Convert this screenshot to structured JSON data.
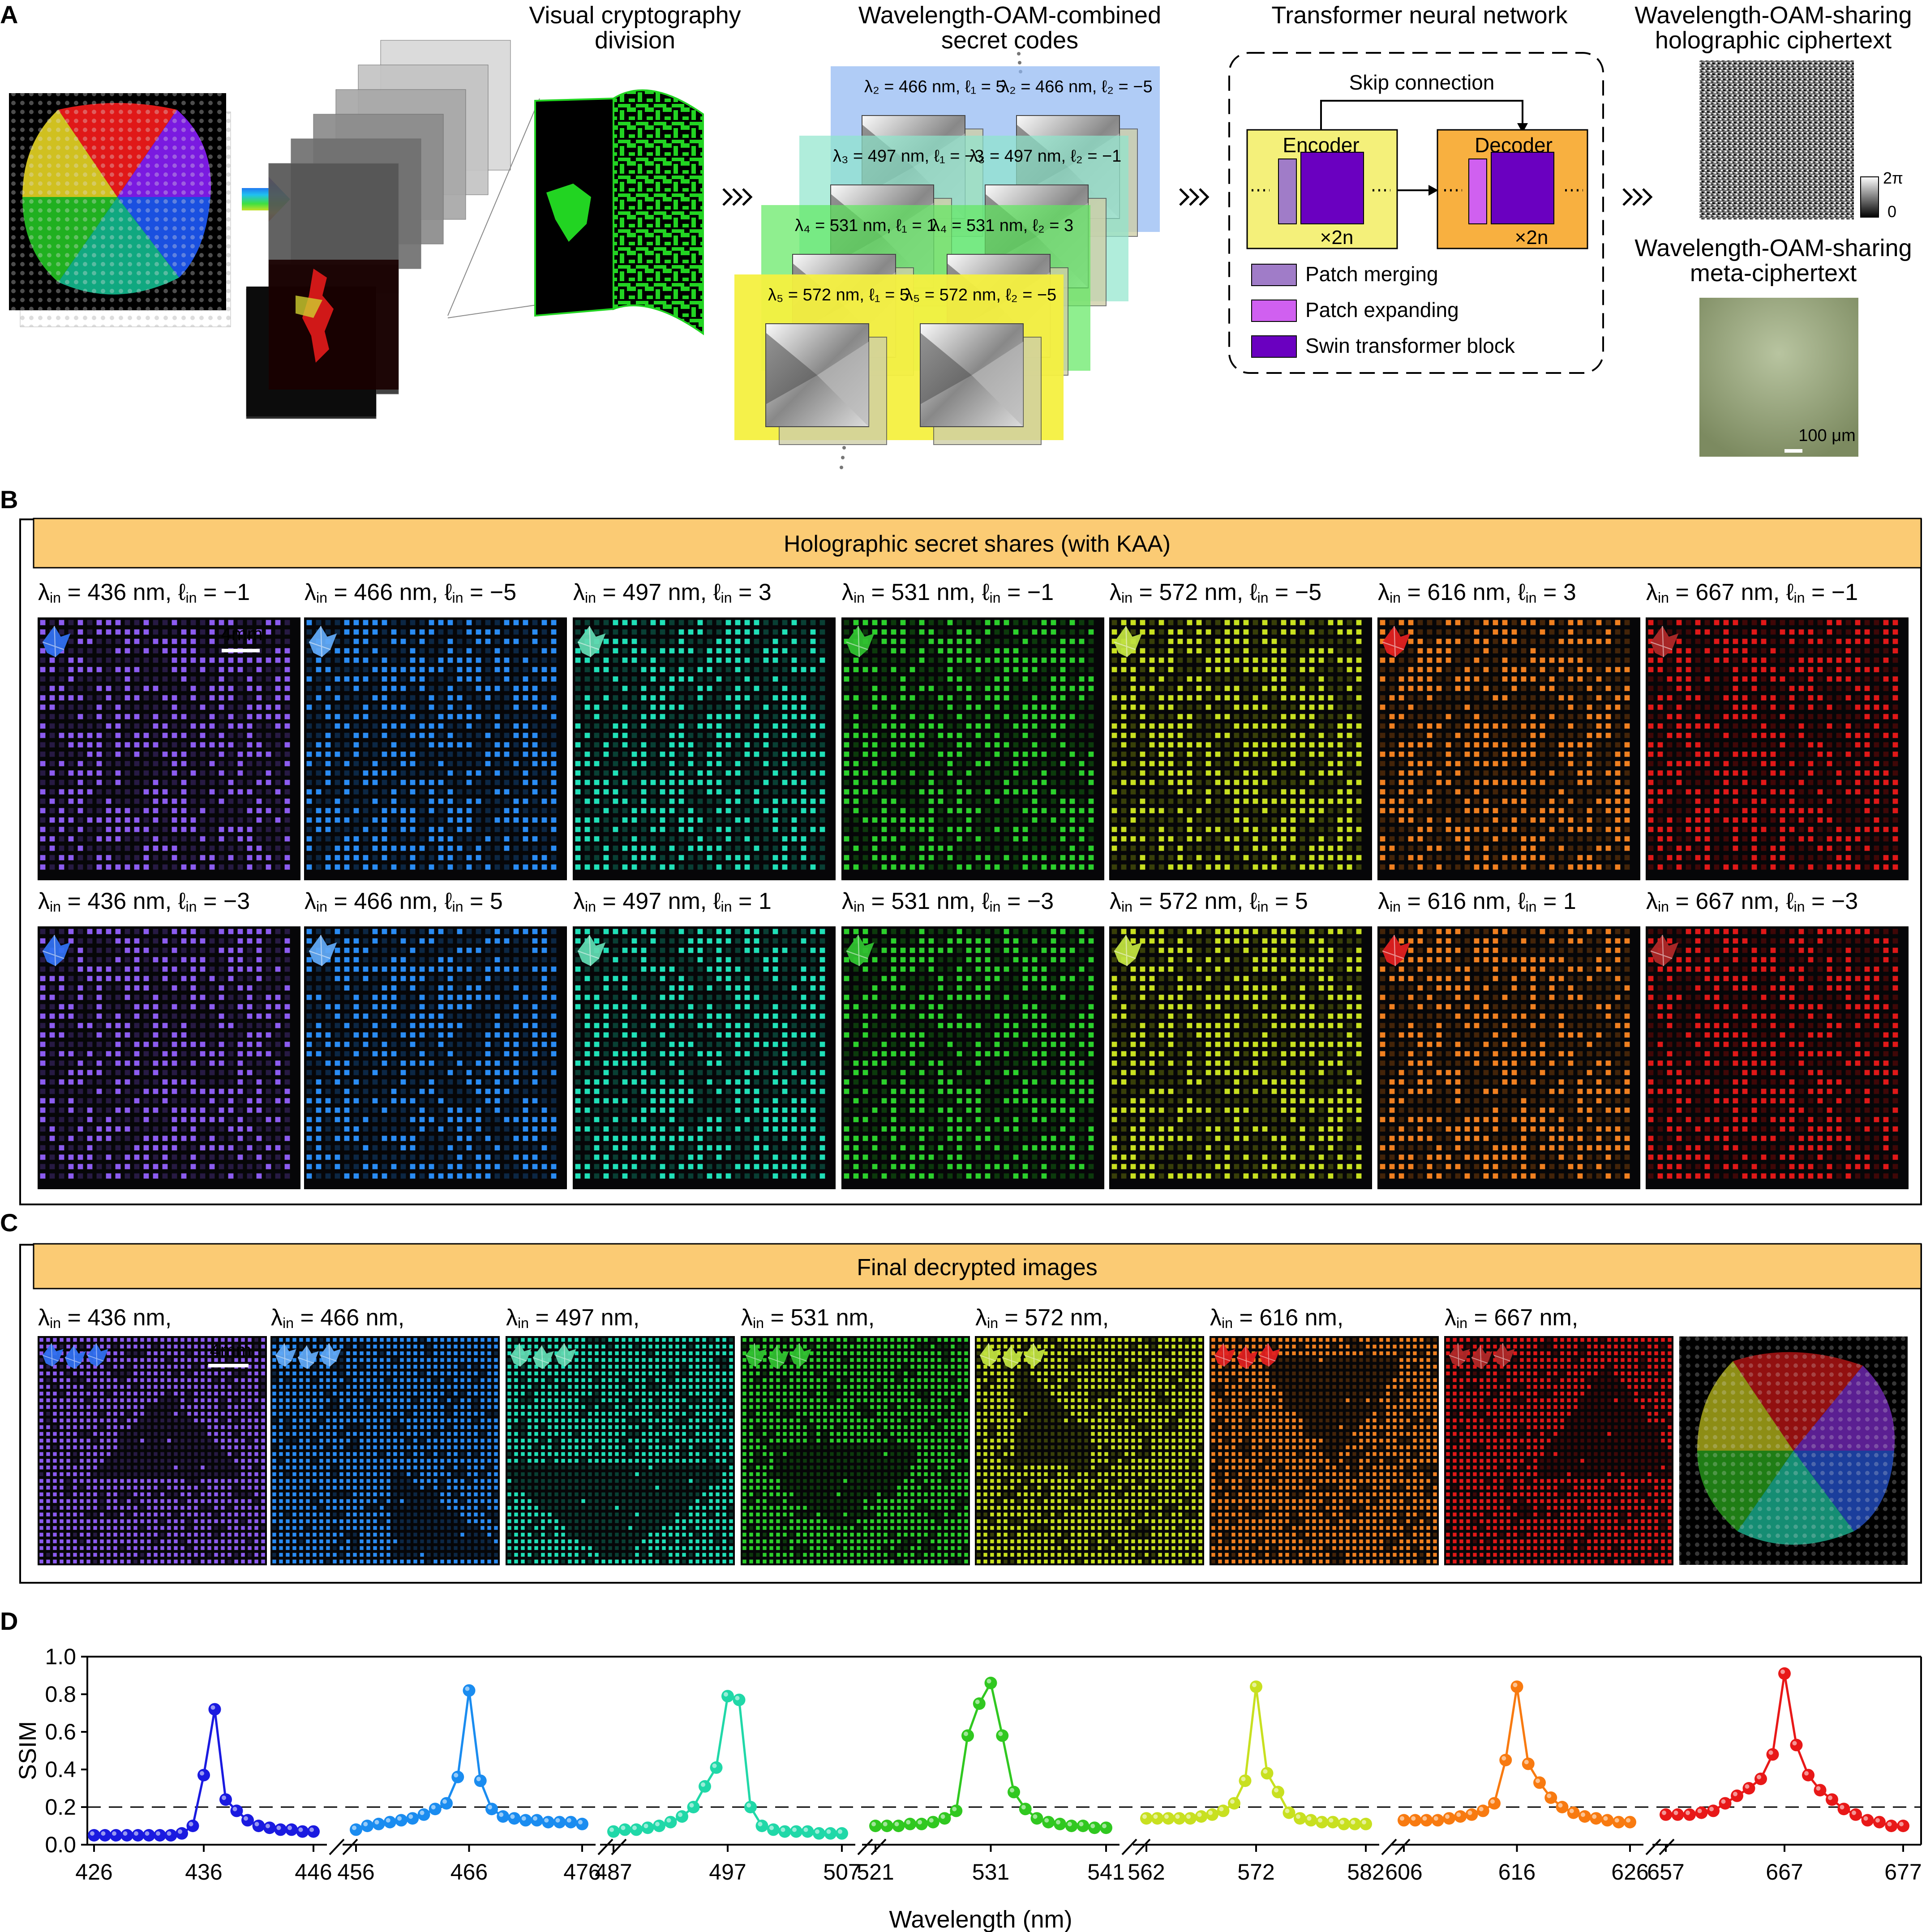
{
  "panel_labels": {
    "a": "A",
    "b": "B",
    "c": "C",
    "d": "D"
  },
  "panelA": {
    "titles": {
      "vc_1": "Visual cryptography",
      "vc_2": "division",
      "wo_1": "Wavelength-OAM-combined",
      "wo_2": "secret codes",
      "tnn": "Transformer neural network",
      "hc_1": "Wavelength-OAM-sharing",
      "hc_2": "holographic ciphertext",
      "mc_1": "Wavelength-OAM-sharing",
      "mc_2": "meta-ciphertext"
    },
    "code_labels": [
      {
        "left": "λ₂ = 466 nm, ℓ₁ = 5",
        "right": "λ₂ = 466 nm, ℓ₂ = −5"
      },
      {
        "left": "λ₃ = 497 nm, ℓ₁ = −3",
        "right": "λ₃ = 497 nm, ℓ₂ = −1"
      },
      {
        "left": "λ₄ = 531 nm, ℓ₁ = 1",
        "right": "λ₄ = 531 nm, ℓ₂ = 3"
      },
      {
        "left": "λ₅ = 572 nm, ℓ₁ = 5",
        "right": "λ₅ = 572 nm, ℓ₂ = −5"
      }
    ],
    "network": {
      "skip": "Skip connection",
      "encoder": "Encoder",
      "decoder": "Decoder",
      "x2n": "×2n",
      "legend": [
        "Patch merging",
        "Patch expanding",
        "Swin transformer block"
      ]
    },
    "colorbar": {
      "max": "2π",
      "min": "0"
    },
    "scale": "100 μm",
    "colors": {
      "blue": "#8eb6f2",
      "teal": "#8ee6cc",
      "green": "#60e860",
      "yellow": "#f4f040",
      "purple": "#6a00c0",
      "lav": "#a07cc8",
      "pink": "#d060f0",
      "enc": "#f4f07a",
      "dec": "#f8b040"
    }
  },
  "panelB": {
    "header": "Holographic secret shares (with KAA)",
    "scale": "4mm",
    "row1": [
      {
        "wl": "436",
        "l": "−1",
        "color": "#8c5cf0",
        "icon": "#3070f0"
      },
      {
        "wl": "466",
        "l": "−5",
        "color": "#2a8cf4",
        "icon": "#60a8f4"
      },
      {
        "wl": "497",
        "l": "3",
        "color": "#20e0b8",
        "icon": "#60d8b0"
      },
      {
        "wl": "531",
        "l": "−1",
        "color": "#2cd02c",
        "icon": "#30c030"
      },
      {
        "wl": "572",
        "l": "−5",
        "color": "#c8e020",
        "icon": "#c0e040"
      },
      {
        "wl": "616",
        "l": "3",
        "color": "#f08020",
        "icon": "#e02020"
      },
      {
        "wl": "667",
        "l": "−1",
        "color": "#e01818",
        "icon": "#b02828"
      }
    ],
    "row2": [
      {
        "wl": "436",
        "l": "−3",
        "color": "#8c5cf0",
        "icon": "#3070f0"
      },
      {
        "wl": "466",
        "l": "5",
        "color": "#2a8cf4",
        "icon": "#60a8f4"
      },
      {
        "wl": "497",
        "l": "1",
        "color": "#20e0b8",
        "icon": "#60d8b0"
      },
      {
        "wl": "531",
        "l": "−3",
        "color": "#2cd02c",
        "icon": "#30c030"
      },
      {
        "wl": "572",
        "l": "5",
        "color": "#c8e020",
        "icon": "#c0e040"
      },
      {
        "wl": "616",
        "l": "1",
        "color": "#f08020",
        "icon": "#e02020"
      },
      {
        "wl": "667",
        "l": "−3",
        "color": "#e01818",
        "icon": "#b02828"
      }
    ]
  },
  "panelC": {
    "header": "Final decrypted images",
    "scale": "4mm",
    "items": [
      {
        "wl": "436",
        "color": "#8c5cf0"
      },
      {
        "wl": "466",
        "color": "#2a8cf4"
      },
      {
        "wl": "497",
        "color": "#20e0b8"
      },
      {
        "wl": "531",
        "color": "#2cd02c"
      },
      {
        "wl": "572",
        "color": "#c8e020"
      },
      {
        "wl": "616",
        "color": "#f08020"
      },
      {
        "wl": "667",
        "color": "#e01818"
      }
    ]
  },
  "chart_data": {
    "type": "line",
    "title": "",
    "xlabel": "Wavelength (nm)",
    "ylabel": "SSIM",
    "ylim": [
      0,
      1.0
    ],
    "yticks": [
      "0.0",
      "0.2",
      "0.4",
      "0.6",
      "0.8",
      "1.0"
    ],
    "threshold": 0.2,
    "broken_axis": true,
    "series": [
      {
        "name": "436 nm",
        "color": "#1a1ae0",
        "ticks": [
          "426",
          "436",
          "446"
        ],
        "x": [
          426,
          427,
          428,
          429,
          430,
          431,
          432,
          433,
          434,
          435,
          436,
          437,
          438,
          439,
          440,
          441,
          442,
          443,
          444,
          445,
          446
        ],
        "y": [
          0.05,
          0.05,
          0.05,
          0.05,
          0.05,
          0.05,
          0.05,
          0.05,
          0.06,
          0.1,
          0.37,
          0.72,
          0.24,
          0.18,
          0.13,
          0.1,
          0.09,
          0.08,
          0.08,
          0.07,
          0.07
        ]
      },
      {
        "name": "466 nm",
        "color": "#1a8cf0",
        "ticks": [
          "456",
          "466",
          "476"
        ],
        "x": [
          456,
          457,
          458,
          459,
          460,
          461,
          462,
          463,
          464,
          465,
          466,
          467,
          468,
          469,
          470,
          471,
          472,
          473,
          474,
          475,
          476
        ],
        "y": [
          0.08,
          0.1,
          0.11,
          0.12,
          0.13,
          0.14,
          0.16,
          0.19,
          0.22,
          0.36,
          0.82,
          0.34,
          0.19,
          0.15,
          0.14,
          0.13,
          0.13,
          0.12,
          0.12,
          0.12,
          0.11
        ]
      },
      {
        "name": "497 nm",
        "color": "#20d8a8",
        "ticks": [
          "487",
          "497",
          "507"
        ],
        "x": [
          487,
          488,
          489,
          490,
          491,
          492,
          493,
          494,
          495,
          496,
          497,
          498,
          499,
          500,
          501,
          502,
          503,
          504,
          505,
          506,
          507
        ],
        "y": [
          0.07,
          0.08,
          0.08,
          0.09,
          0.1,
          0.12,
          0.15,
          0.2,
          0.31,
          0.41,
          0.79,
          0.77,
          0.2,
          0.1,
          0.08,
          0.07,
          0.07,
          0.07,
          0.06,
          0.06,
          0.06
        ]
      },
      {
        "name": "531 nm",
        "color": "#30c820",
        "ticks": [
          "521",
          "531",
          "541"
        ],
        "x": [
          521,
          522,
          523,
          524,
          525,
          526,
          527,
          528,
          529,
          530,
          531,
          532,
          533,
          534,
          535,
          536,
          537,
          538,
          539,
          540,
          541
        ],
        "y": [
          0.1,
          0.1,
          0.1,
          0.11,
          0.11,
          0.12,
          0.14,
          0.18,
          0.58,
          0.75,
          0.86,
          0.58,
          0.28,
          0.19,
          0.14,
          0.12,
          0.11,
          0.1,
          0.1,
          0.09,
          0.09
        ]
      },
      {
        "name": "572 nm",
        "color": "#c8e020",
        "ticks": [
          "562",
          "572",
          "582"
        ],
        "x": [
          562,
          563,
          564,
          565,
          566,
          567,
          568,
          569,
          570,
          571,
          572,
          573,
          574,
          575,
          576,
          577,
          578,
          579,
          580,
          581,
          582
        ],
        "y": [
          0.14,
          0.14,
          0.14,
          0.14,
          0.14,
          0.15,
          0.16,
          0.18,
          0.22,
          0.34,
          0.84,
          0.38,
          0.28,
          0.17,
          0.14,
          0.13,
          0.12,
          0.12,
          0.11,
          0.11,
          0.11
        ]
      },
      {
        "name": "616 nm",
        "color": "#f87a10",
        "ticks": [
          "606",
          "616",
          "626"
        ],
        "x": [
          606,
          607,
          608,
          609,
          610,
          611,
          612,
          613,
          614,
          615,
          616,
          617,
          618,
          619,
          620,
          621,
          622,
          623,
          624,
          625,
          626
        ],
        "y": [
          0.13,
          0.13,
          0.13,
          0.13,
          0.14,
          0.15,
          0.16,
          0.18,
          0.22,
          0.45,
          0.84,
          0.43,
          0.33,
          0.25,
          0.2,
          0.17,
          0.15,
          0.14,
          0.13,
          0.12,
          0.12
        ]
      },
      {
        "name": "667 nm",
        "color": "#e81818",
        "ticks": [
          "657",
          "667",
          "677"
        ],
        "x": [
          657,
          658,
          659,
          660,
          661,
          662,
          663,
          664,
          665,
          666,
          667,
          668,
          669,
          670,
          671,
          672,
          673,
          674,
          675,
          676,
          677
        ],
        "y": [
          0.16,
          0.16,
          0.16,
          0.17,
          0.18,
          0.22,
          0.26,
          0.3,
          0.35,
          0.48,
          0.91,
          0.53,
          0.37,
          0.29,
          0.24,
          0.19,
          0.16,
          0.13,
          0.12,
          0.1,
          0.1
        ]
      }
    ]
  }
}
